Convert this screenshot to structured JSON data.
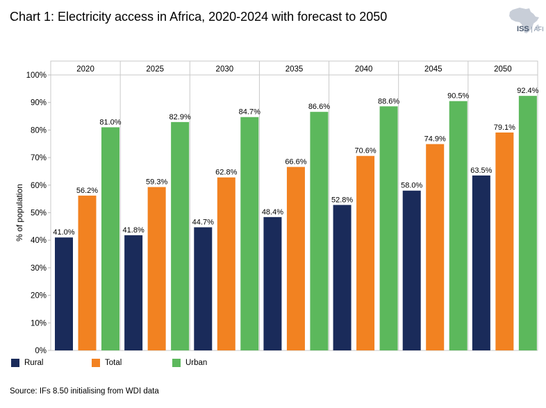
{
  "title": "Chart 1: Electricity access in Africa, 2020-2024 with forecast to 2050",
  "logo": {
    "main": "ISS",
    "sub": "AFI",
    "icon": "africa-map-icon"
  },
  "source": "Source: IFs 8.50 initialising from WDI data",
  "chart_data": {
    "type": "bar",
    "categories": [
      "2020",
      "2025",
      "2030",
      "2035",
      "2040",
      "2045",
      "2050"
    ],
    "series": [
      {
        "name": "Rural",
        "color": "#1a2b5a",
        "values": [
          41.0,
          41.8,
          44.7,
          48.4,
          52.8,
          58.0,
          63.5
        ]
      },
      {
        "name": "Total",
        "color": "#f28221",
        "values": [
          56.2,
          59.3,
          62.8,
          66.6,
          70.6,
          74.9,
          79.1
        ]
      },
      {
        "name": "Urban",
        "color": "#5cb85c",
        "values": [
          81.0,
          82.9,
          84.7,
          86.6,
          88.6,
          90.5,
          92.4
        ]
      }
    ],
    "value_labels": {
      "Rural": [
        "41.0%",
        "41.8%",
        "44.7%",
        "48.4%",
        "52.8%",
        "58.0%",
        "63.5%"
      ],
      "Total": [
        "56.2%",
        "59.3%",
        "62.8%",
        "66.6%",
        "70.6%",
        "74.9%",
        "79.1%"
      ],
      "Urban": [
        "81.0%",
        "82.9%",
        "84.7%",
        "86.6%",
        "88.6%",
        "90.5%",
        "92.4%"
      ]
    },
    "ylabel": "% of population",
    "ylim": [
      0,
      100
    ],
    "yticks": [
      0,
      10,
      20,
      30,
      40,
      50,
      60,
      70,
      80,
      90,
      100
    ],
    "ytick_labels": [
      "0%",
      "10%",
      "20%",
      "30%",
      "40%",
      "50%",
      "60%",
      "70%",
      "80%",
      "90%",
      "100%"
    ],
    "category_labels_position": "top",
    "grid": false,
    "legend_position": "bottom-left"
  }
}
